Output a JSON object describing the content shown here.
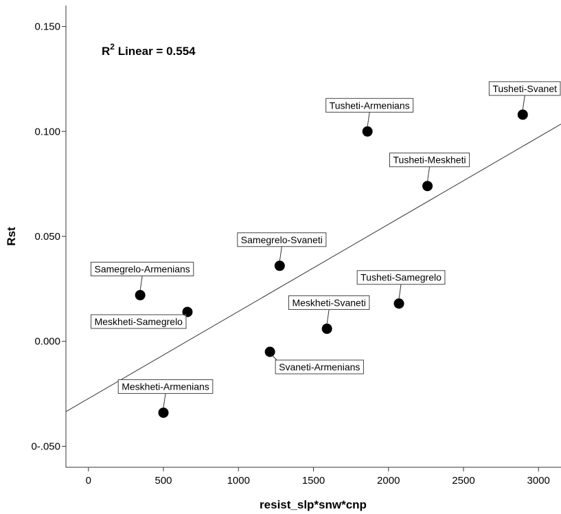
{
  "chart_data": {
    "type": "scatter",
    "xlabel": "resist_slp*snw*cnp",
    "ylabel": "Rst",
    "xlim": [
      -150,
      3150
    ],
    "ylim": [
      -0.06,
      0.16
    ],
    "x_ticks": [
      {
        "value": 0,
        "label": "0"
      },
      {
        "value": 500,
        "label": "500"
      },
      {
        "value": 1000,
        "label": "1000"
      },
      {
        "value": 1500,
        "label": "1500"
      },
      {
        "value": 2000,
        "label": "2000"
      },
      {
        "value": 2500,
        "label": "2500"
      },
      {
        "value": 3000,
        "label": "3000"
      }
    ],
    "y_ticks": [
      {
        "value": 0.15,
        "label": "0.150"
      },
      {
        "value": 0.1,
        "label": "0.100"
      },
      {
        "value": 0.05,
        "label": "0.050"
      },
      {
        "value": 0.0,
        "label": "0.000"
      },
      {
        "value": -0.05,
        "label": "0-.050"
      }
    ],
    "annotation": {
      "prefix": "R",
      "sup": "2",
      "suffix": " Linear = 0.554"
    },
    "fit_line": {
      "x": [
        -150,
        3150
      ],
      "y": [
        -0.0335,
        0.1035
      ]
    },
    "points": [
      {
        "name": "Meskheti-Armenians",
        "x": 500,
        "y": -0.034,
        "label_pos": "above"
      },
      {
        "name": "Samegrelo-Armenians",
        "x": 345,
        "y": 0.022,
        "label_pos": "above"
      },
      {
        "name": "Meskheti-Samegrelo",
        "x": 660,
        "y": 0.014,
        "label_pos": "below-left"
      },
      {
        "name": "Svaneti-Armenians",
        "x": 1210,
        "y": -0.005,
        "label_pos": "below"
      },
      {
        "name": "Samegrelo-Svaneti",
        "x": 1275,
        "y": 0.036,
        "label_pos": "above"
      },
      {
        "name": "Meskheti-Svaneti",
        "x": 1590,
        "y": 0.006,
        "label_pos": "above"
      },
      {
        "name": "Tusheti-Armenians",
        "x": 1860,
        "y": 0.1,
        "label_pos": "above"
      },
      {
        "name": "Tusheti-Samegrelo",
        "x": 2070,
        "y": 0.018,
        "label_pos": "above"
      },
      {
        "name": "Tusheti-Meskheti",
        "x": 2260,
        "y": 0.074,
        "label_pos": "above"
      },
      {
        "name": "Tusheti-Svanet",
        "x": 2895,
        "y": 0.108,
        "label_pos": "above"
      }
    ]
  }
}
